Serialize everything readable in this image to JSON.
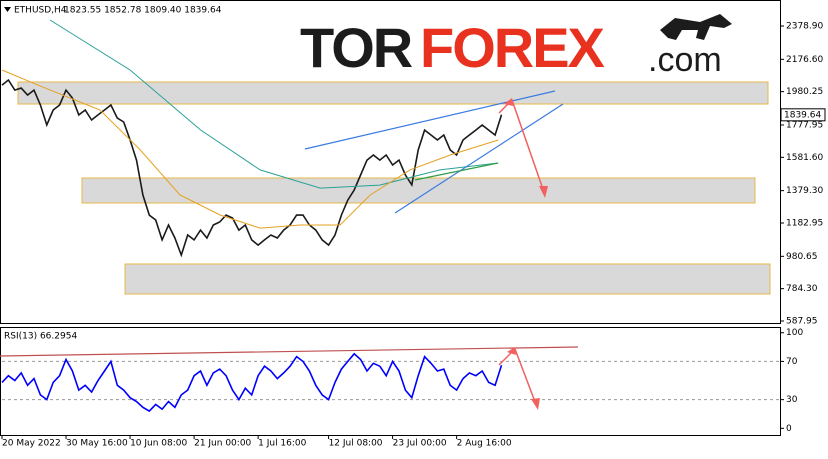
{
  "logo": {
    "part1": "TOR",
    "part2": "FOREX",
    "part3": ".com"
  },
  "chart_data": [
    {
      "type": "line",
      "title": "ETHUSD,H4",
      "subtitle": "1823.55 1852.78 1809.40 1839.64",
      "xlim": [
        0,
        121.5
      ],
      "xticks": [
        {
          "value": 0,
          "label": "20 May 2022"
        },
        {
          "value": 10,
          "label": "30 May 16:00"
        },
        {
          "value": 20,
          "label": "10 Jun 08:00"
        },
        {
          "value": 30,
          "label": "21 Jun 00:00"
        },
        {
          "value": 40,
          "label": "1 Jul 16:00"
        },
        {
          "value": 51,
          "label": "12 Jul 08:00"
        },
        {
          "value": 61,
          "label": "23 Jul 00:00"
        },
        {
          "value": 71,
          "label": "2 Aug 16:00"
        }
      ],
      "ylim": [
        575.8,
        2536.7
      ],
      "yticks": [
        {
          "value": 587.95,
          "label": "587.95"
        },
        {
          "value": 784.3,
          "label": "784.30"
        },
        {
          "value": 980.65,
          "label": "980.65"
        },
        {
          "value": 1182.95,
          "label": "1182.95"
        },
        {
          "value": 1379.3,
          "label": "1379.30"
        },
        {
          "value": 1581.6,
          "label": "1581.60"
        },
        {
          "value": 1777.95,
          "label": "1777.95"
        },
        {
          "value": 1980.25,
          "label": "1980.25"
        },
        {
          "value": 2176.6,
          "label": "2176.60"
        },
        {
          "value": 2378.9,
          "label": "2378.90"
        }
      ],
      "current_price": {
        "value": 1839.64,
        "label": "1839.64"
      },
      "series": [
        {
          "color": "#1a1a1a",
          "x": [
            0,
            1,
            2,
            3,
            4,
            5,
            6,
            7,
            8,
            9,
            10,
            11,
            12,
            13,
            14,
            15,
            16,
            17,
            18,
            19,
            20,
            21,
            22,
            23,
            24,
            25,
            26,
            27,
            28,
            29,
            30,
            31,
            32,
            33,
            34,
            35,
            36,
            37,
            38,
            39,
            40,
            41,
            42,
            43,
            44,
            45,
            46,
            47,
            48,
            49,
            50,
            51,
            52,
            53,
            54,
            55,
            56,
            57,
            58,
            59,
            60,
            61,
            62,
            63,
            64,
            65,
            66,
            67,
            68,
            69,
            70,
            71,
            72,
            73,
            74,
            75,
            76,
            77,
            78
          ],
          "values": [
            2020,
            2051,
            1990,
            2002,
            1960,
            1990,
            1899,
            1778,
            1869,
            1899,
            1990,
            1942,
            1839,
            1869,
            1808,
            1839,
            1869,
            1899,
            1820,
            1796,
            1687,
            1565,
            1353,
            1231,
            1201,
            1080,
            1171,
            1092,
            988,
            1110,
            1080,
            1140,
            1092,
            1171,
            1189,
            1231,
            1213,
            1140,
            1171,
            1080,
            1049,
            1080,
            1110,
            1092,
            1140,
            1171,
            1231,
            1231,
            1171,
            1140,
            1080,
            1049,
            1110,
            1231,
            1322,
            1383,
            1474,
            1565,
            1596,
            1565,
            1596,
            1535,
            1565,
            1474,
            1414,
            1626,
            1747,
            1717,
            1687,
            1717,
            1626,
            1596,
            1687,
            1717,
            1747,
            1778,
            1747,
            1717,
            1839.64
          ]
        },
        {
          "color": "#2aa198",
          "x": [
            7.5,
            20,
            31,
            40.3,
            49.7,
            59,
            68.4,
            77.5
          ],
          "values": [
            2415,
            2112,
            1748,
            1505,
            1395,
            1413,
            1505,
            1547
          ]
        },
        {
          "color": "#e6a020",
          "x": [
            0,
            5.6,
            15.3,
            21.6,
            27.8,
            34.1,
            40.3,
            46.6,
            52.8,
            57.5,
            63.7,
            70,
            77.5
          ],
          "values": [
            2112,
            2020,
            1869,
            1626,
            1353,
            1231,
            1152,
            1171,
            1171,
            1353,
            1505,
            1596,
            1687
          ]
        }
      ]
    },
    {
      "type": "line",
      "title": "RSI(13) 66.2954",
      "xlim": [
        0,
        121.5
      ],
      "ylim": [
        -7,
        106
      ],
      "yticks": [
        0,
        30,
        70,
        100
      ],
      "series": [
        {
          "color": "#0000ff",
          "x": [
            0,
            1,
            2,
            3,
            4,
            5,
            6,
            7,
            8,
            9,
            10,
            11,
            12,
            13,
            14,
            15,
            16,
            17,
            18,
            19,
            20,
            21,
            22,
            23,
            24,
            25,
            26,
            27,
            28,
            29,
            30,
            31,
            32,
            33,
            34,
            35,
            36,
            37,
            38,
            39,
            40,
            41,
            42,
            43,
            44,
            45,
            46,
            47,
            48,
            49,
            50,
            51,
            52,
            53,
            54,
            55,
            56,
            57,
            58,
            59,
            60,
            61,
            62,
            63,
            64,
            65,
            66,
            67,
            68,
            69,
            70,
            71,
            72,
            73,
            74,
            75,
            76,
            77,
            78
          ],
          "values": [
            48,
            55,
            50,
            58,
            45,
            52,
            35,
            30,
            48,
            55,
            72,
            60,
            40,
            45,
            38,
            50,
            60,
            70,
            45,
            40,
            32,
            28,
            22,
            18,
            25,
            20,
            28,
            22,
            35,
            40,
            55,
            60,
            45,
            58,
            62,
            55,
            40,
            30,
            42,
            35,
            55,
            65,
            60,
            52,
            58,
            65,
            75,
            70,
            60,
            45,
            35,
            30,
            48,
            62,
            70,
            78,
            72,
            60,
            68,
            65,
            55,
            70,
            60,
            40,
            32,
            55,
            75,
            68,
            60,
            62,
            45,
            40,
            52,
            58,
            55,
            60,
            48,
            45,
            66
          ]
        }
      ]
    }
  ]
}
